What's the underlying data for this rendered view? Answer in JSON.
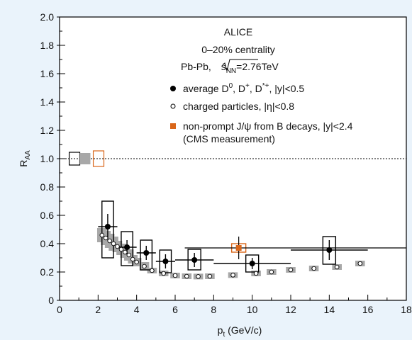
{
  "chart_data": {
    "type": "scatter",
    "title": "",
    "xlabel": "p_t (GeV/c)",
    "xlabel_main": "p",
    "xlabel_sub": "t",
    "xlabel_units": " (GeV/c)",
    "ylabel": "R_AA",
    "ylabel_main": "R",
    "ylabel_sub": "AA",
    "xlim": [
      0,
      18
    ],
    "ylim": [
      0,
      2.0
    ],
    "x_ticks": [
      "0",
      "2",
      "4",
      "6",
      "8",
      "10",
      "12",
      "14",
      "16",
      "18"
    ],
    "y_ticks": [
      "0",
      "0.2",
      "0.4",
      "0.6",
      "0.8",
      "1.0",
      "1.2",
      "1.4",
      "1.6",
      "1.8",
      "2.0"
    ],
    "reference_line": 1.0,
    "annotations": {
      "experiment": "ALICE",
      "centrality": "0–20% centrality",
      "system": "Pb-Pb, ",
      "energy_sqrt": "s",
      "energy_sub": "NN",
      "energy_value": "=2.76TeV"
    },
    "legend": [
      {
        "label": "average D0, D+, D*+, |y|<0.5",
        "marker": "filled-circle"
      },
      {
        "label": "charged particles, |η|<0.8",
        "marker": "open-circle"
      },
      {
        "label": "non-prompt J/ψ from B decays, |y|<2.4",
        "label2": "(CMS measurement)",
        "marker": "orange-square"
      }
    ],
    "legend_text": {
      "d_prefix": "average D",
      "d_sup1": "0",
      "d_mid1": ", D",
      "d_sup2": "+",
      "d_mid2": ", D",
      "d_sup3": "*+",
      "d_suffix": ",  |y|<0.5",
      "charged": "charged particles, |η|<0.8",
      "cms1": "non-prompt  J/ψ from B decays, |y|<2.4",
      "cms2": "(CMS measurement)"
    },
    "normalization_boxes": [
      {
        "series": "D mesons",
        "y": 1.0
      },
      {
        "series": "charged particles",
        "y": 1.0
      },
      {
        "series": "non-prompt J/psi",
        "y": 1.0
      }
    ],
    "series": [
      {
        "name": "average D0, D+, D*+",
        "style": "filled-circle",
        "points": [
          {
            "x": 2.5,
            "xlo": 2.0,
            "xhi": 3.0,
            "y": 0.52,
            "stat": 0.09,
            "sys_lo": 0.22,
            "sys_hi": 0.18
          },
          {
            "x": 3.5,
            "xlo": 3.0,
            "xhi": 4.0,
            "y": 0.375,
            "stat": 0.05,
            "sys_lo": 0.13,
            "sys_hi": 0.11
          },
          {
            "x": 4.5,
            "xlo": 4.0,
            "xhi": 5.0,
            "y": 0.335,
            "stat": 0.05,
            "sys_lo": 0.12,
            "sys_hi": 0.09
          },
          {
            "x": 5.5,
            "xlo": 5.0,
            "xhi": 6.0,
            "y": 0.275,
            "stat": 0.05,
            "sys_lo": 0.08,
            "sys_hi": 0.08
          },
          {
            "x": 7.0,
            "xlo": 6.0,
            "xhi": 8.0,
            "y": 0.285,
            "stat": 0.05,
            "sys_lo": 0.07,
            "sys_hi": 0.075
          },
          {
            "x": 10.0,
            "xlo": 8.0,
            "xhi": 12.0,
            "y": 0.26,
            "stat": 0.04,
            "sys_lo": 0.06,
            "sys_hi": 0.06
          },
          {
            "x": 14.0,
            "xlo": 12.0,
            "xhi": 16.0,
            "y": 0.355,
            "stat": 0.07,
            "sys_lo": 0.1,
            "sys_hi": 0.095
          }
        ]
      },
      {
        "name": "charged particles",
        "style": "open-circle",
        "points": [
          {
            "x": 2.2,
            "y": 0.46,
            "sys": 0.05
          },
          {
            "x": 2.4,
            "y": 0.44,
            "sys": 0.05
          },
          {
            "x": 2.6,
            "y": 0.42,
            "sys": 0.05
          },
          {
            "x": 2.8,
            "y": 0.4,
            "sys": 0.05
          },
          {
            "x": 3.0,
            "y": 0.38,
            "sys": 0.04
          },
          {
            "x": 3.2,
            "y": 0.36,
            "sys": 0.04
          },
          {
            "x": 3.4,
            "y": 0.34,
            "sys": 0.04
          },
          {
            "x": 3.6,
            "y": 0.32,
            "sys": 0.04
          },
          {
            "x": 3.8,
            "y": 0.29,
            "sys": 0.03
          },
          {
            "x": 4.0,
            "y": 0.27,
            "sys": 0.03
          },
          {
            "x": 4.4,
            "y": 0.24,
            "sys": 0.03
          },
          {
            "x": 4.8,
            "y": 0.21,
            "sys": 0.02
          },
          {
            "x": 5.4,
            "y": 0.19,
            "sys": 0.02
          },
          {
            "x": 6.0,
            "y": 0.175,
            "sys": 0.02
          },
          {
            "x": 6.6,
            "y": 0.17,
            "sys": 0.02
          },
          {
            "x": 7.2,
            "y": 0.168,
            "sys": 0.02
          },
          {
            "x": 7.8,
            "y": 0.17,
            "sys": 0.02
          },
          {
            "x": 9.0,
            "y": 0.178,
            "sys": 0.02
          },
          {
            "x": 10.2,
            "y": 0.19,
            "sys": 0.02
          },
          {
            "x": 11.0,
            "y": 0.2,
            "sys": 0.02
          },
          {
            "x": 12.0,
            "y": 0.215,
            "sys": 0.02
          },
          {
            "x": 13.2,
            "y": 0.225,
            "sys": 0.02
          },
          {
            "x": 14.4,
            "y": 0.235,
            "sys": 0.02
          },
          {
            "x": 15.6,
            "y": 0.26,
            "sys": 0.02
          }
        ]
      },
      {
        "name": "non-prompt J/psi (CMS)",
        "style": "orange-square",
        "points": [
          {
            "x": 9.3,
            "xlo": 6.5,
            "xhi": 18.0,
            "y": 0.37,
            "stat": 0.08,
            "sys": 0.03
          }
        ]
      }
    ]
  },
  "colors": {
    "background": "#eaf3fb",
    "plot_area": "#ffffff",
    "charged_band": "#a8a8a8",
    "cms_orange": "#d9661a"
  }
}
